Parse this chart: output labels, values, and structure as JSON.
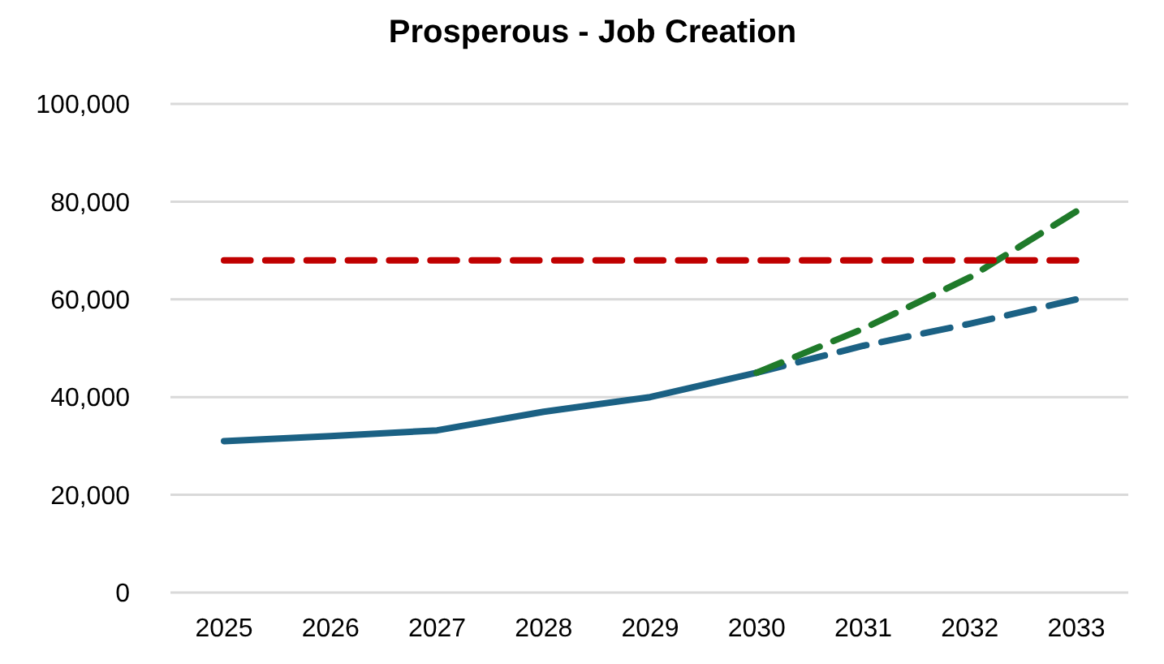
{
  "chart_data": {
    "type": "line",
    "title": "Prosperous - Job Creation",
    "categories": [
      "2025",
      "2026",
      "2027",
      "2028",
      "2029",
      "2030",
      "2031",
      "2032",
      "2033"
    ],
    "series": [
      {
        "color": "#1b6184",
        "line_style": "solid",
        "values": [
          31000,
          32000,
          33200,
          37000,
          40000,
          45000,
          null,
          null,
          null
        ]
      },
      {
        "color": "#1b6184",
        "line_style": "dashed",
        "values": [
          null,
          null,
          null,
          null,
          null,
          45000,
          50500,
          55000,
          60000
        ]
      },
      {
        "color": "#1f7a2a",
        "line_style": "dashed",
        "values": [
          null,
          null,
          null,
          null,
          null,
          45000,
          54000,
          64500,
          78000
        ]
      },
      {
        "color": "#c00000",
        "line_style": "dashed",
        "values": [
          68000,
          68000,
          68000,
          68000,
          68000,
          68000,
          68000,
          68000,
          68000
        ]
      }
    ],
    "ylim": [
      0,
      100000
    ],
    "yticks": [
      {
        "value": 0,
        "label": "0"
      },
      {
        "value": 20000,
        "label": "20,000"
      },
      {
        "value": 40000,
        "label": "40,000"
      },
      {
        "value": 60000,
        "label": "60,000"
      },
      {
        "value": 80000,
        "label": "80,000"
      },
      {
        "value": 100000,
        "label": "100,000"
      }
    ],
    "grid": "y",
    "marker": "none"
  }
}
